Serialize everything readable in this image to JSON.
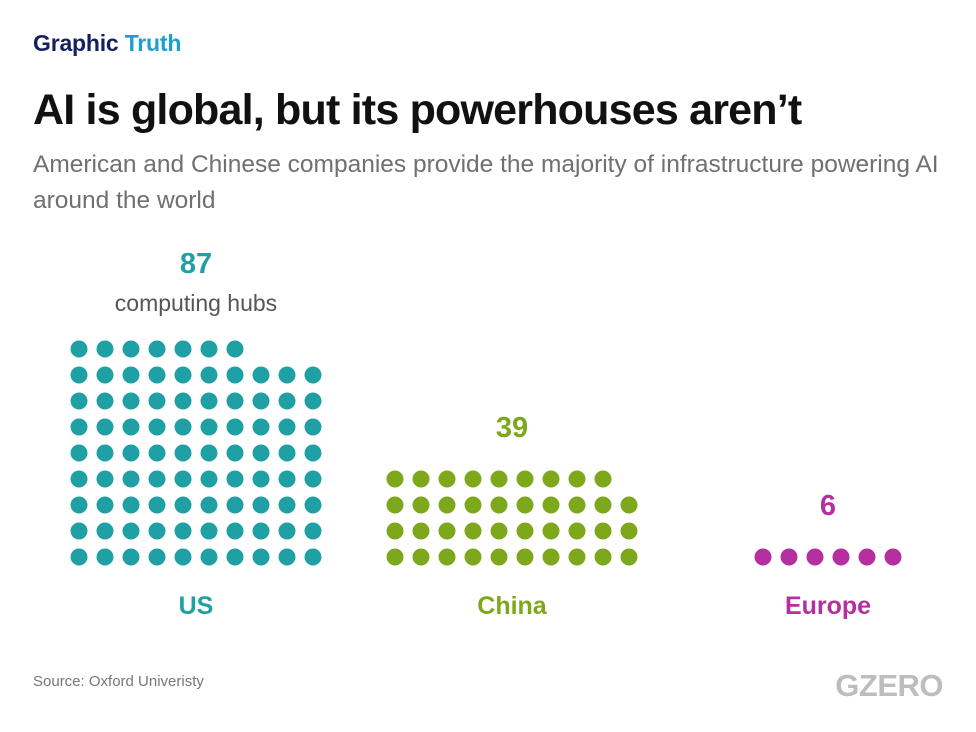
{
  "header": {
    "kicker_part1": "Graphic",
    "kicker_part2": "Truth",
    "title": "AI is global, but its powerhouses aren’t",
    "subtitle": "American and Chinese companies provide the majority of infrastructure powering AI around the world"
  },
  "chart_data": {
    "type": "waffle",
    "title": "AI is global, but its powerhouses aren’t",
    "subtitle": "American and Chinese companies provide the majority of infrastructure powering AI around the world",
    "unit_label": "computing hubs",
    "categories": [
      "US",
      "China",
      "Europe"
    ],
    "values": [
      87,
      39,
      6
    ],
    "value_labels": [
      "87",
      "39",
      "6"
    ],
    "colors": [
      "#1fa0a4",
      "#7ea81b",
      "#b52fa0"
    ],
    "dots_per_row": [
      10,
      10,
      6
    ],
    "grid": false,
    "legend": "none"
  },
  "footer": {
    "source": "Source: Oxford Univeristy",
    "logo": "GZERO"
  }
}
